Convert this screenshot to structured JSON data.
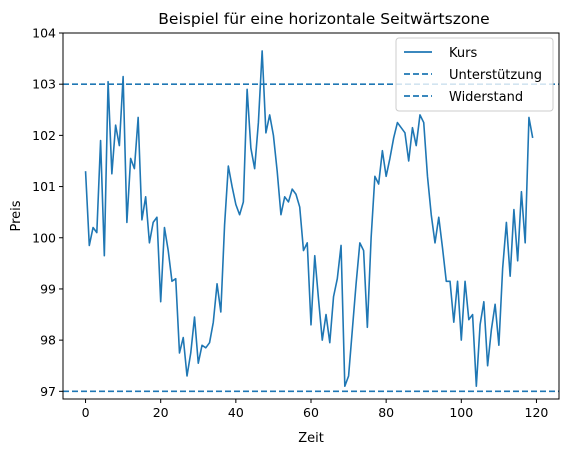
{
  "chart_data": {
    "type": "line",
    "title": "Beispiel für eine horizontale Seitwärtszone",
    "xlabel": "Zeit",
    "ylabel": "Preis",
    "xlim": [
      -6,
      126
    ],
    "ylim": [
      96.85,
      104.0
    ],
    "xticks": [
      0,
      20,
      40,
      60,
      80,
      100,
      120
    ],
    "yticks": [
      97,
      98,
      99,
      100,
      101,
      102,
      103,
      104
    ],
    "grid": false,
    "legend_position": "top-right",
    "colors": {
      "series": "#1f77b4",
      "support": "#1f77b4",
      "resistance": "#1f77b4"
    },
    "series": [
      {
        "name": "Kurs",
        "style": "solid",
        "x": [
          0,
          1,
          2,
          3,
          4,
          5,
          6,
          7,
          8,
          9,
          10,
          11,
          12,
          13,
          14,
          15,
          16,
          17,
          18,
          19,
          20,
          21,
          22,
          23,
          24,
          25,
          26,
          27,
          28,
          29,
          30,
          31,
          32,
          33,
          34,
          35,
          36,
          37,
          38,
          39,
          40,
          41,
          42,
          43,
          44,
          45,
          46,
          47,
          48,
          49,
          50,
          51,
          52,
          53,
          54,
          55,
          56,
          57,
          58,
          59,
          60,
          61,
          62,
          63,
          64,
          65,
          66,
          67,
          68,
          69,
          70,
          71,
          72,
          73,
          74,
          75,
          76,
          77,
          78,
          79,
          80,
          81,
          82,
          83,
          84,
          85,
          86,
          87,
          88,
          89,
          90,
          91,
          92,
          93,
          94,
          95,
          96,
          97,
          98,
          99,
          100,
          101,
          102,
          103,
          104,
          105,
          106,
          107,
          108,
          109,
          110,
          111,
          112,
          113,
          114,
          115,
          116,
          117,
          118,
          119
        ],
        "y": [
          101.3,
          99.85,
          100.2,
          100.1,
          101.9,
          99.65,
          103.05,
          101.25,
          102.2,
          101.8,
          103.15,
          100.3,
          101.55,
          101.35,
          102.35,
          100.35,
          100.8,
          99.9,
          100.3,
          100.4,
          98.75,
          100.2,
          99.75,
          99.15,
          99.2,
          97.75,
          98.05,
          97.3,
          97.75,
          98.45,
          97.55,
          97.9,
          97.85,
          97.95,
          98.35,
          99.1,
          98.55,
          100.25,
          101.4,
          101.0,
          100.65,
          100.45,
          100.7,
          102.9,
          101.75,
          101.35,
          102.25,
          103.65,
          102.05,
          102.4,
          102.0,
          101.3,
          100.45,
          100.8,
          100.7,
          100.95,
          100.85,
          100.6,
          99.75,
          99.9,
          98.3,
          99.65,
          98.8,
          98.0,
          98.5,
          97.95,
          98.85,
          99.2,
          99.85,
          97.1,
          97.3,
          98.2,
          99.1,
          99.9,
          99.75,
          98.25,
          100.0,
          101.2,
          101.05,
          101.7,
          101.2,
          101.55,
          101.95,
          102.25,
          102.15,
          102.05,
          101.5,
          102.15,
          101.8,
          102.4,
          102.25,
          101.2,
          100.45,
          99.9,
          100.4,
          99.8,
          99.15,
          99.15,
          98.35,
          99.15,
          98.0,
          99.15,
          98.4,
          98.5,
          97.1,
          98.3,
          98.75,
          97.5,
          98.2,
          98.7,
          97.9,
          99.4,
          100.3,
          99.25,
          100.55,
          99.55,
          100.9,
          99.9,
          102.35,
          101.95
        ]
      },
      {
        "name": "Unterstützung",
        "style": "dashed",
        "value": 103
      },
      {
        "name": "Widerstand",
        "style": "dashed",
        "value": 97
      }
    ]
  }
}
